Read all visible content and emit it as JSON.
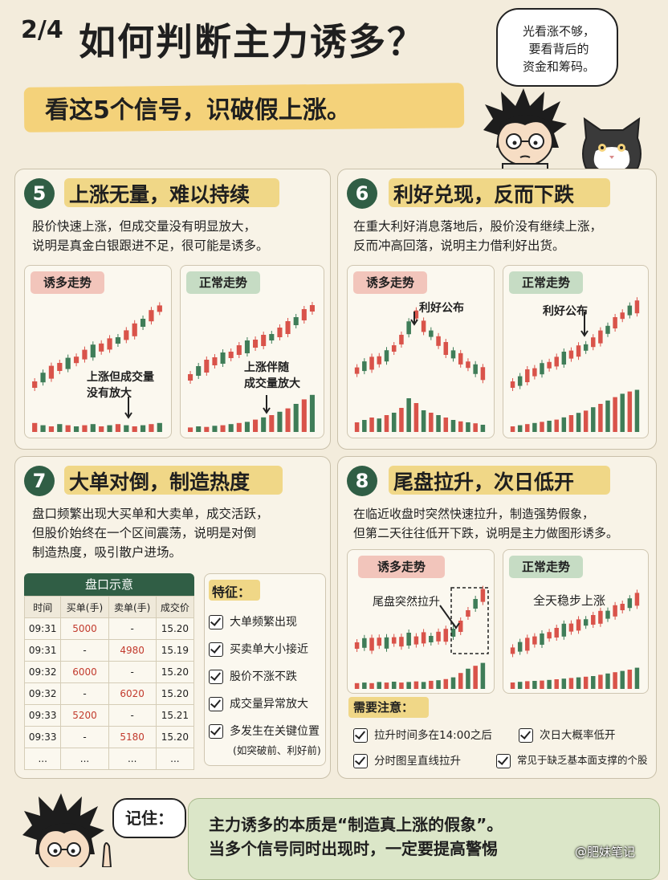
{
  "header": {
    "page_num": "2/4",
    "title": "如何判断主力诱多？",
    "subtitle": "看这5个信号，识破假上涨。",
    "bubble_lines": [
      "光看涨不够，",
      "要看背后的",
      "资金和筹码。"
    ]
  },
  "sections": [
    {
      "number": "5",
      "title": "上涨无量，难以持续",
      "desc_lines": [
        "股价快速上涨，但成交量没有明显放大，",
        "说明是真金白银跟进不足，很可能是诱多。"
      ],
      "left_tag": "诱多走势",
      "right_tag": "正常走势",
      "left_annotation_lines": [
        "上涨但成交量",
        "没有放大"
      ],
      "right_annotation_lines": [
        "上涨伴随",
        "成交量放大"
      ]
    },
    {
      "number": "6",
      "title": "利好兑现，反而下跌",
      "desc_lines": [
        "在重大利好消息落地后，股价没有继续上涨，",
        "反而冲高回落，说明主力借利好出货。"
      ],
      "left_tag": "诱多走势",
      "right_tag": "正常走势",
      "left_annotation": "利好公布",
      "right_annotation": "利好公布"
    },
    {
      "number": "7",
      "title": "大单对倒，制造热度",
      "desc_lines": [
        "盘口频繁出现大买单和大卖单，成交活跃，",
        "但股价始终在一个区间震荡，说明是对倒",
        "制造热度，吸引散户进场。"
      ],
      "table_title": "盘口示意",
      "table_headers": [
        "时间",
        "买单(手)",
        "卖单(手)",
        "成交价"
      ],
      "table_rows": [
        [
          "09:31",
          "5000",
          "-",
          "15.20"
        ],
        [
          "09:31",
          "-",
          "4980",
          "15.19"
        ],
        [
          "09:32",
          "6000",
          "-",
          "15.20"
        ],
        [
          "09:32",
          "-",
          "6020",
          "15.20"
        ],
        [
          "09:33",
          "5200",
          "-",
          "15.21"
        ],
        [
          "09:33",
          "-",
          "5180",
          "15.20"
        ],
        [
          "...",
          "...",
          "...",
          "..."
        ]
      ],
      "features_title": "特征：",
      "features": [
        "大单频繁出现",
        "买卖单大小接近",
        "股价不涨不跌",
        "成交量异常放大",
        "多发生在关键位置"
      ],
      "features_note": "(如突破前、利好前)"
    },
    {
      "number": "8",
      "title": "尾盘拉升，次日低开",
      "desc_lines": [
        "在临近收盘时突然快速拉升，制造强势假象，",
        "但第二天往往低开下跌，说明是主力做图形诱多。"
      ],
      "left_tag": "诱多走势",
      "right_tag": "正常走势",
      "left_annotation": "尾盘突然拉升",
      "right_annotation": "全天稳步上涨",
      "notes_title": "需要注意：",
      "notes": [
        "拉升时间多在14:00之后",
        "次日大概率低开",
        "分时图呈直线拉升",
        "常见于缺乏基本面支撑的个股"
      ]
    }
  ],
  "footer": {
    "remember_label": "记住：",
    "lines": [
      "主力诱多的本质是“制造真上涨的假象”。",
      "当多个信号同时出现时，一定要提高警惕"
    ],
    "watermark": "@肥妹笔记"
  },
  "colors": {
    "up_red": "#d9534a",
    "down_green": "#3f7d58",
    "band_yellow": "#f0d787",
    "circle_green": "#305e45"
  }
}
